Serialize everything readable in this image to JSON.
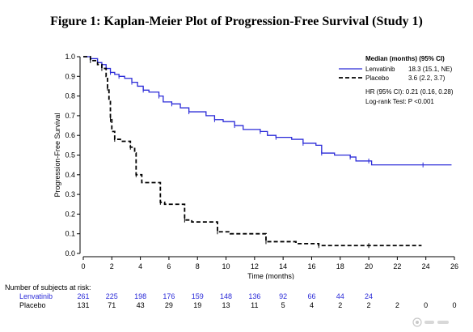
{
  "figure_title": "Figure 1:  Kaplan-Meier Plot of Progression-Free Survival (Study 1)",
  "chart_data": {
    "type": "line",
    "xlabel": "Time (months)",
    "ylabel": "Progression-Free Survival",
    "xlim": [
      0,
      26
    ],
    "ylim": [
      0.0,
      1.0
    ],
    "xticks": [
      0,
      2,
      4,
      6,
      8,
      10,
      12,
      14,
      16,
      18,
      20,
      22,
      24,
      26
    ],
    "yticks": [
      0.0,
      0.1,
      0.2,
      0.3,
      0.4,
      0.5,
      0.6,
      0.7,
      0.8,
      0.9,
      1.0
    ],
    "legend": {
      "header": "Median (months) (95% CI)",
      "placement": "top-right",
      "hr_text": "HR (95% CI): 0.21 (0.16, 0.28)",
      "logrank_text": "Log-rank Test: P <0.001"
    },
    "series": [
      {
        "name": "Lenvatinib",
        "median_text": "18.3 (15.1, NE)",
        "color": "#2a2ad8",
        "style": "solid",
        "x": [
          0,
          0.5,
          1.0,
          1.3,
          1.6,
          1.9,
          2.2,
          2.5,
          2.9,
          3.4,
          3.8,
          4.2,
          4.6,
          5.3,
          5.6,
          6.2,
          6.8,
          7.4,
          8.6,
          9.2,
          9.8,
          10.6,
          11.2,
          12.4,
          12.9,
          13.5,
          14.6,
          15.4,
          16.3,
          16.7,
          17.6,
          18.7,
          19.1,
          20.0,
          20.2,
          23.8,
          25.8
        ],
        "y": [
          1.0,
          0.99,
          0.97,
          0.96,
          0.94,
          0.92,
          0.91,
          0.9,
          0.89,
          0.87,
          0.85,
          0.83,
          0.82,
          0.8,
          0.77,
          0.76,
          0.74,
          0.72,
          0.7,
          0.68,
          0.67,
          0.65,
          0.63,
          0.62,
          0.6,
          0.59,
          0.58,
          0.56,
          0.55,
          0.51,
          0.5,
          0.49,
          0.47,
          0.47,
          0.45,
          0.45,
          0.45
        ]
      },
      {
        "name": "Placebo",
        "median_text": "3.6 (2.2, 3.7)",
        "color": "#000000",
        "style": "dashed",
        "x": [
          0,
          0.5,
          1.0,
          1.3,
          1.6,
          1.7,
          1.8,
          1.9,
          2.0,
          2.2,
          2.6,
          3.3,
          3.6,
          3.7,
          4.1,
          5.4,
          5.7,
          7.1,
          7.6,
          9.4,
          10.3,
          12.8,
          14.9,
          16.5,
          18.5,
          20.0,
          23.7
        ],
        "y": [
          1.0,
          0.98,
          0.96,
          0.94,
          0.9,
          0.84,
          0.78,
          0.68,
          0.62,
          0.58,
          0.57,
          0.54,
          0.51,
          0.4,
          0.36,
          0.26,
          0.25,
          0.17,
          0.16,
          0.11,
          0.1,
          0.06,
          0.05,
          0.04,
          0.04,
          0.04,
          0.04
        ]
      }
    ]
  },
  "risk_table": {
    "title": "Number of subjects at risk:",
    "times": [
      0,
      2,
      4,
      6,
      8,
      10,
      12,
      14,
      16,
      18,
      20,
      22,
      24,
      26
    ],
    "rows": [
      {
        "label": "Lenvatinib",
        "color": "#2a2ad8",
        "values": [
          "261",
          "225",
          "198",
          "176",
          "159",
          "148",
          "136",
          "92",
          "66",
          "44",
          "24",
          "",
          "",
          ""
        ]
      },
      {
        "label": "Placebo",
        "color": "#000000",
        "values": [
          "131",
          "71",
          "43",
          "29",
          "19",
          "13",
          "11",
          "5",
          "4",
          "2",
          "2",
          "2",
          "0",
          "0"
        ]
      }
    ]
  }
}
